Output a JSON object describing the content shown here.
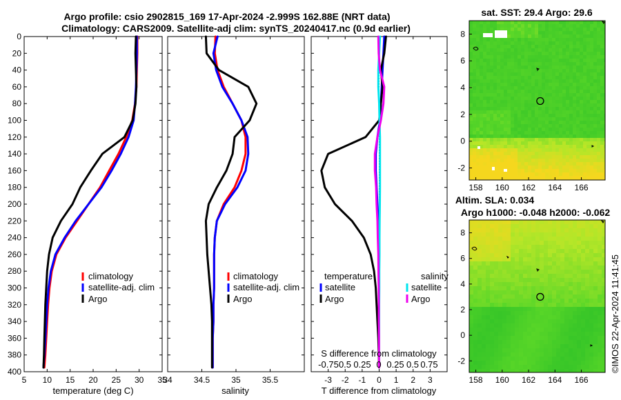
{
  "titles": {
    "line1": "Argo profile: csio 2902815_169 17-Apr-2024 -2.999S 162.88E (NRT data)",
    "line2": "Climatology: CARS2009. Satellite-adj clim: synTS_20240417.nc (0.9d earlier)",
    "sst_title": "sat. SST: 29.4 Argo: 29.6",
    "sla_title1": "Altim. SLA: 0.034",
    "sla_title2": "Argo h1000: -0.048 h2000: -0.062",
    "side_stamp": "©IMOS 22-Apr-2024 11:41:45"
  },
  "colors": {
    "climatology": "#ff0000",
    "satellite": "#0000ff",
    "argo": "#000000",
    "sat_diff_S": "#00e5ee",
    "argo_diff_S": "#ee00ee"
  },
  "chart_data": [
    {
      "type": "line",
      "name": "temperature-panel",
      "xlabel": "temperature (deg C)",
      "ylabel": "depth",
      "xlim": [
        5,
        35
      ],
      "ylim": [
        400,
        0
      ],
      "xticks": [
        5,
        10,
        15,
        20,
        25,
        30,
        35
      ],
      "yticks": [
        0,
        20,
        40,
        60,
        80,
        100,
        120,
        140,
        160,
        180,
        200,
        220,
        240,
        260,
        280,
        300,
        320,
        340,
        360,
        380,
        400
      ],
      "legend": [
        "climatology",
        "satellite-adj. clim",
        "Argo"
      ],
      "series": [
        {
          "name": "climatology",
          "x": [
            29.6,
            29.6,
            29.5,
            29.4,
            29.1,
            28.5,
            27.2,
            25.5,
            23.5,
            21.5,
            19.0,
            16.5,
            14.0,
            12.0,
            11.0,
            10.5,
            10.2,
            10.0,
            9.8,
            9.6,
            9.4
          ],
          "y": [
            0,
            20,
            40,
            60,
            80,
            100,
            120,
            140,
            160,
            180,
            200,
            220,
            240,
            260,
            280,
            300,
            320,
            340,
            360,
            380,
            395
          ]
        },
        {
          "name": "satellite-adj. clim",
          "x": [
            29.5,
            29.5,
            29.4,
            29.3,
            29.1,
            28.8,
            27.7,
            26.0,
            24.0,
            21.8,
            19.0,
            16.2,
            13.8,
            11.8,
            10.8,
            10.3,
            10.0,
            9.8,
            9.6,
            9.4,
            9.2
          ],
          "y": [
            0,
            20,
            40,
            60,
            80,
            100,
            120,
            140,
            160,
            180,
            200,
            220,
            240,
            260,
            280,
            300,
            320,
            340,
            360,
            380,
            395
          ]
        },
        {
          "name": "Argo",
          "x": [
            29.3,
            29.2,
            29.3,
            29.4,
            29.2,
            28.6,
            26.8,
            22.0,
            19.5,
            17.2,
            15.5,
            13.0,
            11.2,
            10.4,
            10.0,
            9.8,
            9.6,
            9.5,
            9.4,
            9.3,
            9.2
          ],
          "y": [
            0,
            20,
            40,
            60,
            80,
            100,
            120,
            140,
            160,
            180,
            200,
            220,
            240,
            260,
            280,
            300,
            320,
            340,
            360,
            380,
            395
          ]
        }
      ]
    },
    {
      "type": "line",
      "name": "salinity-panel",
      "xlabel": "salinity",
      "xlim": [
        34,
        36
      ],
      "ylim": [
        400,
        0
      ],
      "xticks": [
        34,
        34.5,
        35,
        35.5
      ],
      "legend": [
        "climatology",
        "satellite-adj. clim",
        "Argo"
      ],
      "series": [
        {
          "name": "climatology",
          "x": [
            34.7,
            34.69,
            34.73,
            34.82,
            34.95,
            35.08,
            35.14,
            35.14,
            35.08,
            34.98,
            34.82,
            34.72,
            34.69,
            34.68,
            34.68,
            34.68,
            34.67,
            34.67,
            34.66,
            34.66,
            34.66
          ],
          "y": [
            0,
            20,
            40,
            60,
            80,
            100,
            120,
            140,
            160,
            180,
            200,
            220,
            240,
            260,
            280,
            300,
            320,
            340,
            360,
            380,
            395
          ]
        },
        {
          "name": "satellite-adj. clim",
          "x": [
            34.73,
            34.67,
            34.71,
            34.8,
            34.95,
            35.08,
            35.17,
            35.18,
            35.14,
            35.02,
            34.84,
            34.72,
            34.69,
            34.68,
            34.68,
            34.68,
            34.67,
            34.67,
            34.66,
            34.66,
            34.66
          ],
          "y": [
            0,
            20,
            40,
            60,
            80,
            100,
            120,
            140,
            160,
            180,
            200,
            220,
            240,
            260,
            280,
            300,
            320,
            340,
            360,
            380,
            395
          ]
        },
        {
          "name": "Argo",
          "x": [
            34.56,
            34.57,
            34.75,
            35.18,
            35.3,
            35.2,
            34.98,
            34.95,
            34.86,
            34.72,
            34.6,
            34.56,
            34.57,
            34.58,
            34.6,
            34.62,
            34.64,
            34.65,
            34.65,
            34.65,
            34.65
          ],
          "y": [
            0,
            20,
            40,
            60,
            80,
            100,
            120,
            140,
            160,
            180,
            200,
            220,
            240,
            260,
            280,
            300,
            320,
            340,
            360,
            380,
            395
          ]
        }
      ]
    },
    {
      "type": "line",
      "name": "difference-panel",
      "xlabel": "T difference from climatology",
      "xlabel_top": "S difference from climatology",
      "xlim": [
        -4,
        4
      ],
      "ylim": [
        400,
        0
      ],
      "xticks": [
        -3,
        -2,
        -1,
        0,
        1,
        2,
        3
      ],
      "top_ticks": [
        "-0.75",
        "0.5",
        "0.25",
        "0",
        "0.25",
        "0.5",
        "0.75"
      ],
      "legend_headers": [
        "temperature",
        "salinity"
      ],
      "legend": [
        "satellite",
        "Argo",
        "satellite",
        "Argo"
      ],
      "series": [
        {
          "name": "T satellite",
          "x": [
            0.3,
            0.25,
            0.2,
            0.15,
            0.1,
            0.05,
            -0.1,
            -0.2,
            -0.2,
            -0.15,
            -0.1,
            -0.05,
            -0.02,
            0.0,
            0.0,
            0.0,
            0.0,
            0.0,
            0.0,
            0.0,
            0.0
          ],
          "y": [
            0,
            20,
            40,
            60,
            80,
            100,
            120,
            140,
            160,
            180,
            200,
            220,
            240,
            260,
            280,
            300,
            320,
            340,
            360,
            380,
            395
          ]
        },
        {
          "name": "T Argo",
          "x": [
            0.4,
            0.3,
            0.1,
            0.2,
            0.1,
            0.0,
            -0.8,
            -3.0,
            -3.4,
            -3.2,
            -2.6,
            -1.6,
            -0.9,
            -0.5,
            -0.3,
            -0.2,
            -0.15,
            -0.1,
            -0.05,
            -0.02,
            0.0
          ],
          "y": [
            0,
            20,
            40,
            60,
            80,
            100,
            120,
            140,
            160,
            180,
            200,
            220,
            240,
            260,
            280,
            300,
            320,
            340,
            360,
            380,
            395
          ]
        },
        {
          "name": "S satellite",
          "x": [
            0.05,
            0.0,
            -0.05,
            -0.05,
            0.0,
            0.02,
            0.05,
            0.05,
            0.05,
            0.05,
            0.04,
            0.03,
            0.02,
            0.02,
            0.01,
            0.01,
            0.0,
            0.0,
            0.0,
            0.0,
            0.0
          ],
          "y": [
            0,
            20,
            40,
            60,
            80,
            100,
            120,
            140,
            160,
            180,
            200,
            220,
            240,
            260,
            280,
            300,
            320,
            340,
            360,
            380,
            395
          ]
        },
        {
          "name": "S Argo",
          "x": [
            -0.05,
            -0.03,
            0.05,
            0.3,
            0.25,
            0.1,
            -0.1,
            -0.25,
            -0.25,
            -0.18,
            -0.15,
            -0.1,
            -0.08,
            -0.05,
            -0.04,
            -0.03,
            -0.02,
            -0.02,
            -0.01,
            -0.01,
            0.0
          ],
          "y": [
            0,
            20,
            40,
            60,
            80,
            100,
            120,
            140,
            160,
            180,
            200,
            220,
            240,
            260,
            280,
            300,
            320,
            340,
            360,
            380,
            395
          ]
        }
      ]
    },
    {
      "type": "heatmap",
      "name": "sst-map",
      "title": "sat. SST: 29.4 Argo: 29.6",
      "xlim": [
        157.5,
        167.8
      ],
      "ylim": [
        -2.9,
        9.0
      ],
      "xticks": [
        158,
        160,
        162,
        164,
        166
      ],
      "yticks": [
        -2,
        0,
        2,
        4,
        6,
        8
      ],
      "argo_position": {
        "lon": 162.88,
        "lat": 3.0
      }
    },
    {
      "type": "heatmap",
      "name": "sla-map",
      "title": "Altim. SLA: 0.034",
      "xlim": [
        157.5,
        167.8
      ],
      "ylim": [
        -2.9,
        9.0
      ],
      "xticks": [
        158,
        160,
        162,
        164,
        166
      ],
      "yticks": [
        -2,
        0,
        2,
        4,
        6,
        8
      ],
      "argo_position": {
        "lon": 162.88,
        "lat": 3.0
      }
    }
  ]
}
